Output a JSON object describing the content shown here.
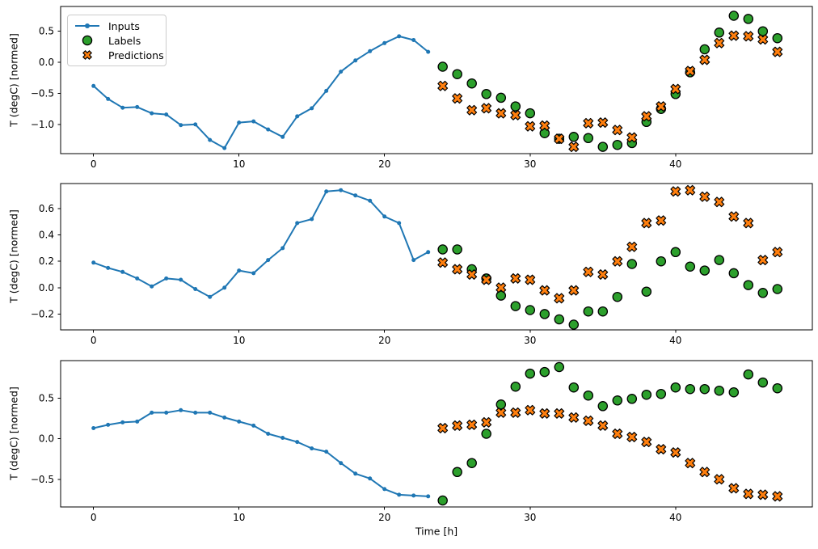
{
  "figure": {
    "background": "#ffffff"
  },
  "chart_data": {
    "type": "line+scatter",
    "layout": "3 stacked panels, shared x axis range, legend upper-left of first panel, frame on, no grid",
    "xlabel": "Time [h]",
    "ylabel": "T (degC) [normed]",
    "legend": [
      "Inputs",
      "Labels",
      "Predictions"
    ],
    "legend_position": "upper left",
    "colors": {
      "inputs": "#1f77b4",
      "labels": "#2ca02c",
      "predictions": "#ff7f0e",
      "marker_edge": "#000000",
      "spine": "#000000",
      "legend_border": "#cccccc"
    },
    "xlim": [
      -2.26,
      49.4
    ],
    "xticks": [
      0,
      10,
      20,
      30,
      40
    ],
    "xtick_labels": [
      "0",
      "10",
      "20",
      "30",
      "40"
    ],
    "x_inputs": [
      0,
      1,
      2,
      3,
      4,
      5,
      6,
      7,
      8,
      9,
      10,
      11,
      12,
      13,
      14,
      15,
      16,
      17,
      18,
      19,
      20,
      21,
      22,
      23
    ],
    "x_targets": [
      24,
      25,
      26,
      27,
      28,
      29,
      30,
      31,
      32,
      33,
      34,
      35,
      36,
      37,
      38,
      39,
      40,
      41,
      42,
      43,
      44,
      45,
      46,
      47
    ],
    "panels": [
      {
        "ylim": [
          -1.47,
          0.9
        ],
        "yticks": [
          -1.0,
          -0.5,
          0.0,
          0.5
        ],
        "ytick_labels": [
          "−1.0",
          "−0.5",
          "0.0",
          "0.5"
        ],
        "inputs": [
          -0.38,
          -0.59,
          -0.73,
          -0.72,
          -0.82,
          -0.84,
          -1.01,
          -1.0,
          -1.25,
          -1.38,
          -0.97,
          -0.95,
          -1.08,
          -1.2,
          -0.87,
          -0.74,
          -0.46,
          -0.15,
          0.03,
          0.18,
          0.31,
          0.42,
          0.36,
          0.17
        ],
        "labels": [
          -0.07,
          -0.19,
          -0.34,
          -0.51,
          -0.57,
          -0.71,
          -0.82,
          -1.14,
          -1.23,
          -1.2,
          -1.22,
          -1.36,
          -1.33,
          -1.3,
          -0.96,
          -0.75,
          -0.51,
          -0.16,
          0.21,
          0.48,
          0.75,
          0.7,
          0.5,
          0.39
        ],
        "predictions": [
          -0.38,
          -0.58,
          -0.77,
          -0.74,
          -0.82,
          -0.85,
          -1.03,
          -1.02,
          -1.23,
          -1.36,
          -0.98,
          -0.97,
          -1.09,
          -1.21,
          -0.87,
          -0.71,
          -0.43,
          -0.14,
          0.04,
          0.31,
          0.43,
          0.42,
          0.37,
          0.17
        ]
      },
      {
        "ylim": [
          -0.32,
          0.79
        ],
        "yticks": [
          -0.2,
          0.0,
          0.2,
          0.4,
          0.6
        ],
        "ytick_labels": [
          "−0.2",
          "0.0",
          "0.2",
          "0.4",
          "0.6"
        ],
        "inputs": [
          0.19,
          0.15,
          0.12,
          0.07,
          0.01,
          0.07,
          0.06,
          -0.01,
          -0.07,
          0.0,
          0.13,
          0.11,
          0.21,
          0.3,
          0.49,
          0.52,
          0.73,
          0.74,
          0.7,
          0.66,
          0.54,
          0.49,
          0.21,
          0.27
        ],
        "labels": [
          0.29,
          0.29,
          0.14,
          0.07,
          -0.06,
          -0.14,
          -0.17,
          -0.2,
          -0.24,
          -0.28,
          -0.18,
          -0.18,
          -0.07,
          0.18,
          -0.03,
          0.2,
          0.27,
          0.16,
          0.13,
          0.21,
          0.11,
          0.02,
          -0.04,
          -0.01
        ],
        "predictions": [
          0.19,
          0.14,
          0.1,
          0.06,
          0.0,
          0.07,
          0.06,
          -0.02,
          -0.08,
          -0.02,
          0.12,
          0.1,
          0.2,
          0.31,
          0.49,
          0.51,
          0.73,
          0.74,
          0.69,
          0.65,
          0.54,
          0.49,
          0.21,
          0.27
        ]
      },
      {
        "ylim": [
          -0.84,
          0.96
        ],
        "yticks": [
          -0.5,
          0.0,
          0.5
        ],
        "ytick_labels": [
          "−0.5",
          "0.0",
          "0.5"
        ],
        "inputs": [
          0.13,
          0.17,
          0.2,
          0.21,
          0.32,
          0.32,
          0.35,
          0.32,
          0.32,
          0.26,
          0.21,
          0.16,
          0.06,
          0.01,
          -0.04,
          -0.12,
          -0.16,
          -0.3,
          -0.43,
          -0.49,
          -0.62,
          -0.69,
          -0.7,
          -0.71
        ],
        "labels": [
          -0.76,
          -0.41,
          -0.3,
          0.06,
          0.42,
          0.64,
          0.8,
          0.82,
          0.88,
          0.63,
          0.53,
          0.4,
          0.47,
          0.49,
          0.54,
          0.55,
          0.63,
          0.61,
          0.61,
          0.59,
          0.57,
          0.79,
          0.69,
          0.62
        ],
        "predictions": [
          0.13,
          0.16,
          0.17,
          0.2,
          0.32,
          0.32,
          0.35,
          0.31,
          0.31,
          0.26,
          0.22,
          0.16,
          0.06,
          0.02,
          -0.04,
          -0.13,
          -0.17,
          -0.3,
          -0.41,
          -0.5,
          -0.61,
          -0.68,
          -0.69,
          -0.71
        ]
      }
    ]
  }
}
